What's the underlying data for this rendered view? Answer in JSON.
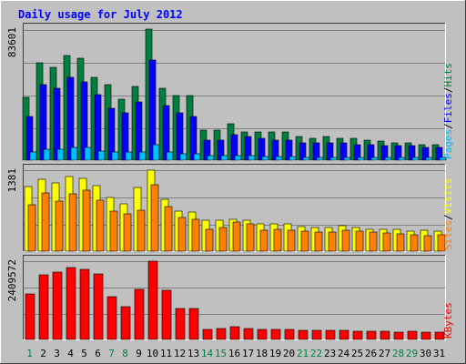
{
  "chart_data": {
    "type": "bar",
    "title": "Daily usage for July 2012",
    "categories": [
      "1",
      "2",
      "3",
      "4",
      "5",
      "6",
      "7",
      "8",
      "9",
      "10",
      "11",
      "12",
      "13",
      "14",
      "15",
      "16",
      "17",
      "18",
      "19",
      "20",
      "21",
      "22",
      "23",
      "24",
      "25",
      "26",
      "27",
      "28",
      "29",
      "30",
      "31"
    ],
    "weekend_days": [
      "1",
      "7",
      "8",
      "14",
      "15",
      "21",
      "22",
      "28",
      "29"
    ],
    "panels": [
      {
        "id": "hits",
        "max_label": "83601",
        "ylim": [
          0,
          83601
        ],
        "right_label": [
          "Pages",
          "/",
          "Files",
          "/",
          "Hits"
        ],
        "series": [
          {
            "name": "Hits",
            "color": "#008040",
            "values": [
              40000,
              62000,
              59000,
              67000,
              65000,
              53000,
              48000,
              39000,
              47000,
              83601,
              46000,
              41000,
              41000,
              19000,
              19000,
              23000,
              18000,
              18000,
              18000,
              18000,
              15000,
              14000,
              15000,
              14000,
              14000,
              13000,
              12000,
              11000,
              11000,
              10000,
              10000
            ]
          },
          {
            "name": "Files",
            "color": "#0000ff",
            "values": [
              28000,
              48000,
              46000,
              53000,
              50000,
              42000,
              33000,
              30000,
              37000,
              64000,
              35000,
              30000,
              28000,
              13000,
              13000,
              16000,
              15000,
              14000,
              13000,
              13000,
              11000,
              11000,
              11000,
              11000,
              10000,
              10000,
              9000,
              9000,
              9000,
              8000,
              8000
            ]
          },
          {
            "name": "Pages",
            "color": "#00c0ff",
            "values": [
              5000,
              7000,
              7000,
              8000,
              8000,
              6000,
              5000,
              5000,
              5000,
              10000,
              5000,
              4000,
              4000,
              3000,
              3000,
              3000,
              3000,
              2500,
              2500,
              2500,
              2000,
              2000,
              2000,
              2000,
              2000,
              2000,
              2000,
              2000,
              2000,
              1800,
              1800
            ]
          }
        ]
      },
      {
        "id": "visits",
        "max_label": "1381",
        "ylim": [
          0,
          1381
        ],
        "right_label": [
          "Sites",
          "/",
          "Visits"
        ],
        "series": [
          {
            "name": "Visits",
            "color": "#ffff00",
            "values": [
              1100,
              1220,
              1170,
              1270,
              1240,
              1110,
              910,
              800,
              1080,
              1381,
              880,
              680,
              660,
              530,
              520,
              550,
              520,
              470,
              470,
              460,
              420,
              400,
              410,
              440,
              400,
              380,
              380,
              370,
              340,
              350,
              340
            ]
          },
          {
            "name": "Sites",
            "color": "#ff8000",
            "values": [
              790,
              990,
              860,
              980,
              1040,
              870,
              690,
              640,
              700,
              1130,
              760,
              570,
              550,
              370,
              410,
              490,
              460,
              360,
              370,
              360,
              340,
              330,
              330,
              350,
              340,
              330,
              310,
              300,
              280,
              270,
              280
            ]
          }
        ]
      },
      {
        "id": "kbytes",
        "max_label": "2409572",
        "ylim": [
          0,
          2409572
        ],
        "right_label": [
          "KBytes"
        ],
        "series": [
          {
            "name": "KBytes",
            "color": "#ff0000",
            "values": [
              1400000,
              2000000,
              2070000,
              2200000,
              2150000,
              2010000,
              1330000,
              1000000,
              1530000,
              2409572,
              1520000,
              950000,
              950000,
              320000,
              330000,
              380000,
              340000,
              300000,
              310000,
              300000,
              280000,
              270000,
              270000,
              270000,
              260000,
              240000,
              240000,
              230000,
              240000,
              220000,
              230000
            ]
          }
        ]
      }
    ],
    "grid": true,
    "legend": "right"
  }
}
